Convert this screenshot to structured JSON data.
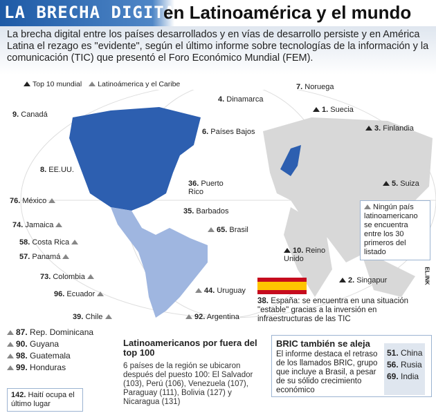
{
  "header": {
    "logo_text": "LA BRECHA DIGITAL",
    "title": "en Latinoamérica y el mundo"
  },
  "intro": "La brecha digital entre los países desarrollados y en vías de desarrollo persiste y en América Latina el rezago es \"evidente\", según el último informe sobre tecnologías de la información y la comunicación (TIC) que presentó el Foro Económico Mundial (FEM).",
  "legend": {
    "top10": "Top 10 mundial",
    "latam": "Latinoámerica y el Caribe"
  },
  "colors": {
    "header_blue": "#1d5aa6",
    "north_america": "#2d5fb0",
    "latin_america": "#9fb6e0",
    "world": "#d8d8d8"
  },
  "top10": [
    {
      "rank": "1.",
      "name": "Suecia"
    },
    {
      "rank": "2.",
      "name": "Singapur"
    },
    {
      "rank": "3.",
      "name": "Finlandia"
    },
    {
      "rank": "4.",
      "name": "Dinamarca"
    },
    {
      "rank": "5.",
      "name": "Suiza"
    },
    {
      "rank": "6.",
      "name": "Países Bajos"
    },
    {
      "rank": "7.",
      "name": "Noruega"
    },
    {
      "rank": "8.",
      "name": "EE.UU."
    },
    {
      "rank": "9.",
      "name": "Canadá"
    },
    {
      "rank": "10.",
      "name": "Reino Unido"
    }
  ],
  "latam": [
    {
      "rank": "36.",
      "name": "Puerto Rico"
    },
    {
      "rank": "35.",
      "name": "Barbados"
    },
    {
      "rank": "65.",
      "name": "Brasil"
    },
    {
      "rank": "76.",
      "name": "México"
    },
    {
      "rank": "74.",
      "name": "Jamaica"
    },
    {
      "rank": "58.",
      "name": "Costa Rica"
    },
    {
      "rank": "57.",
      "name": "Panamá"
    },
    {
      "rank": "73.",
      "name": "Colombia"
    },
    {
      "rank": "96.",
      "name": "Ecuador"
    },
    {
      "rank": "39.",
      "name": "Chile"
    },
    {
      "rank": "44.",
      "name": "Uruguay"
    },
    {
      "rank": "92.",
      "name": "Argentina"
    }
  ],
  "latam_list": [
    {
      "rank": "87.",
      "name": "Rep. Dominicana"
    },
    {
      "rank": "90.",
      "name": "Guyana"
    },
    {
      "rank": "98.",
      "name": "Guatemala"
    },
    {
      "rank": "99.",
      "name": "Honduras"
    }
  ],
  "note": "Ningún país latinoamericano se encuentra entre los 30 primeros del listado",
  "spain": {
    "rank": "38.",
    "text": "España: se encuentra en una situación \"estable\" gracias a la inversión en infraestructuras de las TIC"
  },
  "haiti": {
    "rank": "142.",
    "text": "Haití ocupa el último lugar"
  },
  "outside": {
    "title": "Latinoamericanos por fuera del top 100",
    "text": "6 países de la región se ubicaron después del puesto 100: El Salvador (103), Perú (106), Venezuela (107), Paraguay (111), Bolivia (127) y Nicaragua (131)"
  },
  "bric": {
    "title": "BRIC también se aleja",
    "text": "El informe destaca el retraso de los llamados BRIC, grupo que incluye a Brasil, a pesar de su sólido crecimiento económico",
    "items": [
      {
        "rank": "51.",
        "name": "China"
      },
      {
        "rank": "56.",
        "name": "Rusia"
      },
      {
        "rank": "69.",
        "name": "India"
      }
    ]
  },
  "credit": "EL.INK"
}
